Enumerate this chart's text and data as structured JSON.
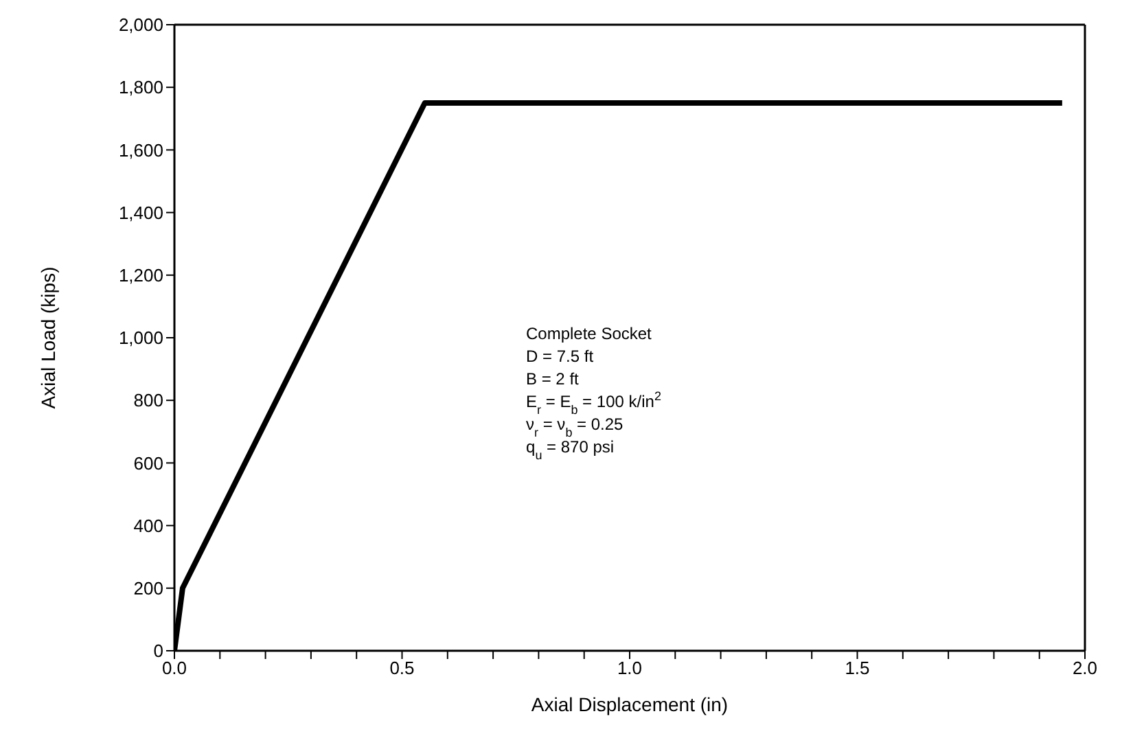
{
  "chart_data": {
    "type": "line",
    "xlabel": "Axial Displacement (in)",
    "ylabel": "Axial Load (kips)",
    "x": [
      0,
      0.018,
      0.55,
      1.95
    ],
    "series": [
      {
        "color": "#000000",
        "values": [
          0,
          200,
          1750,
          1750
        ]
      }
    ],
    "xlim": [
      0,
      2
    ],
    "xticks": [
      {
        "value": 0,
        "label": "0.0"
      },
      {
        "value": 0.1,
        "label": null
      },
      {
        "value": 0.2,
        "label": null
      },
      {
        "value": 0.3,
        "label": null
      },
      {
        "value": 0.4,
        "label": null
      },
      {
        "value": 0.5,
        "label": "0.5"
      },
      {
        "value": 0.6,
        "label": null
      },
      {
        "value": 0.7,
        "label": null
      },
      {
        "value": 0.8,
        "label": null
      },
      {
        "value": 0.9,
        "label": null
      },
      {
        "value": 1,
        "label": "1.0"
      },
      {
        "value": 1.1,
        "label": null
      },
      {
        "value": 1.2,
        "label": null
      },
      {
        "value": 1.3,
        "label": null
      },
      {
        "value": 1.4,
        "label": null
      },
      {
        "value": 1.5,
        "label": "1.5"
      },
      {
        "value": 1.6,
        "label": null
      },
      {
        "value": 1.7,
        "label": null
      },
      {
        "value": 1.8,
        "label": null
      },
      {
        "value": 1.9,
        "label": null
      },
      {
        "value": 2,
        "label": "2.0"
      }
    ],
    "ylim": [
      0,
      2000
    ],
    "yticks": [
      0,
      200,
      400,
      600,
      800,
      {
        "value": 1000,
        "label": "1,000"
      },
      {
        "value": 1200,
        "label": "1,200"
      },
      {
        "value": 1400,
        "label": "1,400"
      },
      {
        "value": 1600,
        "label": "1,600"
      },
      {
        "value": 1800,
        "label": "1,800"
      },
      {
        "value": 2000,
        "label": "2,000"
      }
    ],
    "annotations": [
      "Complete Socket",
      "D = 7.5 ft",
      "B = 2 ft",
      "E$_{r}$ = E$_{b}$ = 100 k/in$^{2}$",
      "ν$_{r}$ = ν$_{b}$ = 0.25",
      "q$_{u}$ = 870 psi"
    ],
    "grid": false,
    "marker": "none",
    "line_style": "solid"
  }
}
